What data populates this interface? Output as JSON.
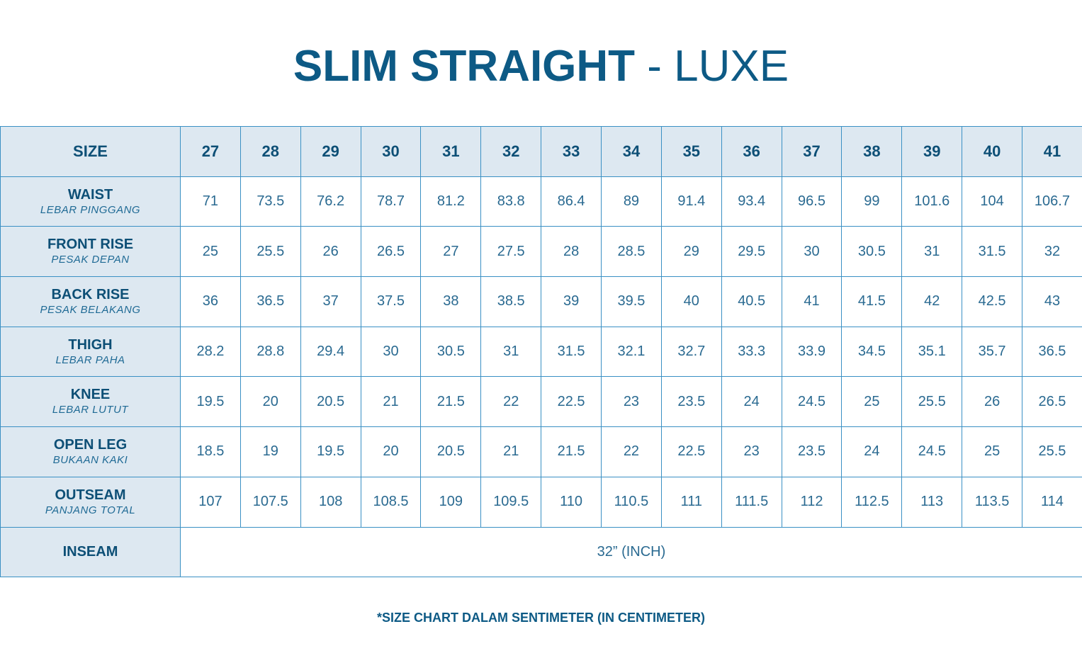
{
  "title": {
    "bold": "SLIM STRAIGHT",
    "rest": " - LUXE"
  },
  "table": {
    "corner": "SIZE",
    "sizes": [
      "27",
      "28",
      "29",
      "30",
      "31",
      "32",
      "33",
      "34",
      "35",
      "36",
      "37",
      "38",
      "39",
      "40",
      "41"
    ],
    "rows": [
      {
        "label": "WAIST",
        "sub": "LEBAR PINGGANG",
        "values": [
          "71",
          "73.5",
          "76.2",
          "78.7",
          "81.2",
          "83.8",
          "86.4",
          "89",
          "91.4",
          "93.4",
          "96.5",
          "99",
          "101.6",
          "104",
          "106.7"
        ]
      },
      {
        "label": "FRONT RISE",
        "sub": "PESAK DEPAN",
        "values": [
          "25",
          "25.5",
          "26",
          "26.5",
          "27",
          "27.5",
          "28",
          "28.5",
          "29",
          "29.5",
          "30",
          "30.5",
          "31",
          "31.5",
          "32"
        ]
      },
      {
        "label": "BACK RISE",
        "sub": "PESAK BELAKANG",
        "values": [
          "36",
          "36.5",
          "37",
          "37.5",
          "38",
          "38.5",
          "39",
          "39.5",
          "40",
          "40.5",
          "41",
          "41.5",
          "42",
          "42.5",
          "43"
        ]
      },
      {
        "label": "THIGH",
        "sub": "LEBAR PAHA",
        "values": [
          "28.2",
          "28.8",
          "29.4",
          "30",
          "30.5",
          "31",
          "31.5",
          "32.1",
          "32.7",
          "33.3",
          "33.9",
          "34.5",
          "35.1",
          "35.7",
          "36.5"
        ]
      },
      {
        "label": "KNEE",
        "sub": "LEBAR LUTUT",
        "values": [
          "19.5",
          "20",
          "20.5",
          "21",
          "21.5",
          "22",
          "22.5",
          "23",
          "23.5",
          "24",
          "24.5",
          "25",
          "25.5",
          "26",
          "26.5"
        ]
      },
      {
        "label": "OPEN LEG",
        "sub": "BUKAAN KAKI",
        "values": [
          "18.5",
          "19",
          "19.5",
          "20",
          "20.5",
          "21",
          "21.5",
          "22",
          "22.5",
          "23",
          "23.5",
          "24",
          "24.5",
          "25",
          "25.5"
        ]
      },
      {
        "label": "OUTSEAM",
        "sub": "PANJANG TOTAL",
        "values": [
          "107",
          "107.5",
          "108",
          "108.5",
          "109",
          "109.5",
          "110",
          "110.5",
          "111",
          "111.5",
          "112",
          "112.5",
          "113",
          "113.5",
          "114"
        ]
      }
    ],
    "inseam": {
      "label": "INSEAM",
      "value": "32” (INCH)"
    }
  },
  "footnote": "*SIZE CHART DALAM SENTIMETER (IN CENTIMETER)",
  "colors": {
    "primary": "#0d5a85",
    "header_bg": "#dde8f1",
    "border": "#3a90c4"
  }
}
